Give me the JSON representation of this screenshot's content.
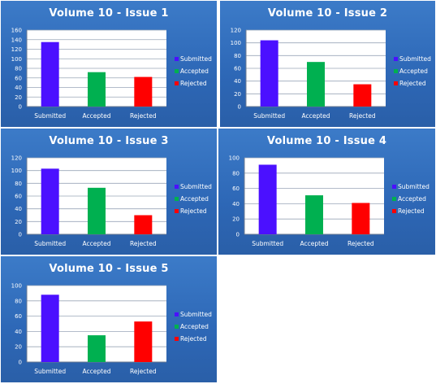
{
  "colors": {
    "submitted": "#4b10ff",
    "accepted": "#00b050",
    "rejected": "#ff0000",
    "plot_bg": "#ffffff",
    "grid": "#9aa6b8",
    "text": "#ffffff"
  },
  "chart_data": [
    {
      "type": "bar",
      "title": "Volume 10 - Issue 1",
      "categories": [
        "Submitted",
        "Accepted",
        "Rejected"
      ],
      "values": [
        135,
        72,
        62
      ],
      "ylim": [
        0,
        160
      ],
      "yticks": [
        0,
        20,
        40,
        60,
        80,
        100,
        120,
        140,
        160
      ],
      "legend": [
        "Submitted",
        "Accepted",
        "Rejected"
      ],
      "legend_position": "right",
      "grid": true
    },
    {
      "type": "bar",
      "title": "Volume 10 - Issue 2",
      "categories": [
        "Submitted",
        "Accepted",
        "Rejected"
      ],
      "values": [
        104,
        70,
        35
      ],
      "ylim": [
        0,
        120
      ],
      "yticks": [
        0,
        20,
        40,
        60,
        80,
        100,
        120
      ],
      "legend": [
        "Submitted",
        "Accepted",
        "Rejected"
      ],
      "legend_position": "right",
      "grid": true
    },
    {
      "type": "bar",
      "title": "Volume 10 - Issue 3",
      "categories": [
        "Submitted",
        "Accepted",
        "Rejected"
      ],
      "values": [
        103,
        73,
        30
      ],
      "ylim": [
        0,
        120
      ],
      "yticks": [
        0,
        20,
        40,
        60,
        80,
        100,
        120
      ],
      "legend": [
        "Submitted",
        "Accepted",
        "Rejected"
      ],
      "legend_position": "right",
      "grid": true
    },
    {
      "type": "bar",
      "title": "Volume 10 - Issue 4",
      "categories": [
        "Submitted",
        "Accepted",
        "Rejected"
      ],
      "values": [
        91,
        51,
        41
      ],
      "ylim": [
        0,
        100
      ],
      "yticks": [
        0,
        20,
        40,
        60,
        80,
        100
      ],
      "legend": [
        "Submitted",
        "Accepted",
        "Rejected"
      ],
      "legend_position": "right",
      "grid": true
    },
    {
      "type": "bar",
      "title": "Volume 10 - Issue 5",
      "categories": [
        "Submitted",
        "Accepted",
        "Rejected"
      ],
      "values": [
        88,
        35,
        53
      ],
      "ylim": [
        0,
        100
      ],
      "yticks": [
        0,
        20,
        40,
        60,
        80,
        100
      ],
      "legend": [
        "Submitted",
        "Accepted",
        "Rejected"
      ],
      "legend_position": "right",
      "grid": true
    }
  ]
}
